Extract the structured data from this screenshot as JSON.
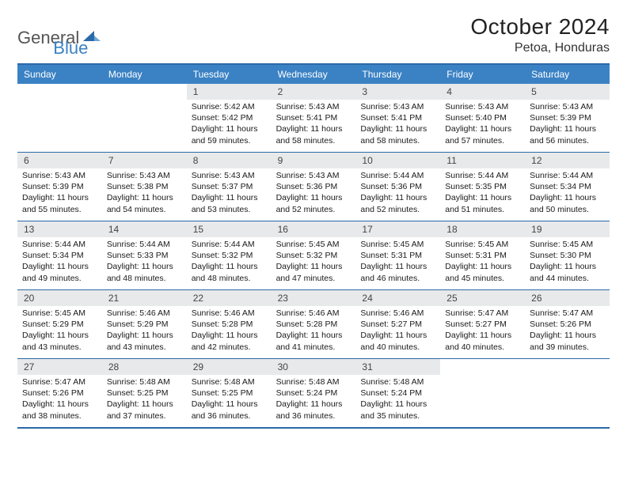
{
  "logo": {
    "word1": "General",
    "word2": "Blue"
  },
  "title": "October 2024",
  "location": "Petoa, Honduras",
  "colors": {
    "header_bg": "#3b82c4",
    "border": "#2b6aa8",
    "daynum_bg": "#e8e9ea",
    "text": "#1a1a1a",
    "logo_gray": "#555555",
    "logo_blue": "#3b82c4"
  },
  "days_of_week": [
    "Sunday",
    "Monday",
    "Tuesday",
    "Wednesday",
    "Thursday",
    "Friday",
    "Saturday"
  ],
  "layout": {
    "grid_columns": 7,
    "grid_rows": 5,
    "fontsize_title": 28,
    "fontsize_location": 16,
    "fontsize_dow": 12,
    "fontsize_daynum": 12,
    "fontsize_body": 10.5
  },
  "weeks": [
    [
      null,
      null,
      {
        "n": "1",
        "sunrise": "Sunrise: 5:42 AM",
        "sunset": "Sunset: 5:42 PM",
        "day1": "Daylight: 11 hours",
        "day2": "and 59 minutes."
      },
      {
        "n": "2",
        "sunrise": "Sunrise: 5:43 AM",
        "sunset": "Sunset: 5:41 PM",
        "day1": "Daylight: 11 hours",
        "day2": "and 58 minutes."
      },
      {
        "n": "3",
        "sunrise": "Sunrise: 5:43 AM",
        "sunset": "Sunset: 5:41 PM",
        "day1": "Daylight: 11 hours",
        "day2": "and 58 minutes."
      },
      {
        "n": "4",
        "sunrise": "Sunrise: 5:43 AM",
        "sunset": "Sunset: 5:40 PM",
        "day1": "Daylight: 11 hours",
        "day2": "and 57 minutes."
      },
      {
        "n": "5",
        "sunrise": "Sunrise: 5:43 AM",
        "sunset": "Sunset: 5:39 PM",
        "day1": "Daylight: 11 hours",
        "day2": "and 56 minutes."
      }
    ],
    [
      {
        "n": "6",
        "sunrise": "Sunrise: 5:43 AM",
        "sunset": "Sunset: 5:39 PM",
        "day1": "Daylight: 11 hours",
        "day2": "and 55 minutes."
      },
      {
        "n": "7",
        "sunrise": "Sunrise: 5:43 AM",
        "sunset": "Sunset: 5:38 PM",
        "day1": "Daylight: 11 hours",
        "day2": "and 54 minutes."
      },
      {
        "n": "8",
        "sunrise": "Sunrise: 5:43 AM",
        "sunset": "Sunset: 5:37 PM",
        "day1": "Daylight: 11 hours",
        "day2": "and 53 minutes."
      },
      {
        "n": "9",
        "sunrise": "Sunrise: 5:43 AM",
        "sunset": "Sunset: 5:36 PM",
        "day1": "Daylight: 11 hours",
        "day2": "and 52 minutes."
      },
      {
        "n": "10",
        "sunrise": "Sunrise: 5:44 AM",
        "sunset": "Sunset: 5:36 PM",
        "day1": "Daylight: 11 hours",
        "day2": "and 52 minutes."
      },
      {
        "n": "11",
        "sunrise": "Sunrise: 5:44 AM",
        "sunset": "Sunset: 5:35 PM",
        "day1": "Daylight: 11 hours",
        "day2": "and 51 minutes."
      },
      {
        "n": "12",
        "sunrise": "Sunrise: 5:44 AM",
        "sunset": "Sunset: 5:34 PM",
        "day1": "Daylight: 11 hours",
        "day2": "and 50 minutes."
      }
    ],
    [
      {
        "n": "13",
        "sunrise": "Sunrise: 5:44 AM",
        "sunset": "Sunset: 5:34 PM",
        "day1": "Daylight: 11 hours",
        "day2": "and 49 minutes."
      },
      {
        "n": "14",
        "sunrise": "Sunrise: 5:44 AM",
        "sunset": "Sunset: 5:33 PM",
        "day1": "Daylight: 11 hours",
        "day2": "and 48 minutes."
      },
      {
        "n": "15",
        "sunrise": "Sunrise: 5:44 AM",
        "sunset": "Sunset: 5:32 PM",
        "day1": "Daylight: 11 hours",
        "day2": "and 48 minutes."
      },
      {
        "n": "16",
        "sunrise": "Sunrise: 5:45 AM",
        "sunset": "Sunset: 5:32 PM",
        "day1": "Daylight: 11 hours",
        "day2": "and 47 minutes."
      },
      {
        "n": "17",
        "sunrise": "Sunrise: 5:45 AM",
        "sunset": "Sunset: 5:31 PM",
        "day1": "Daylight: 11 hours",
        "day2": "and 46 minutes."
      },
      {
        "n": "18",
        "sunrise": "Sunrise: 5:45 AM",
        "sunset": "Sunset: 5:31 PM",
        "day1": "Daylight: 11 hours",
        "day2": "and 45 minutes."
      },
      {
        "n": "19",
        "sunrise": "Sunrise: 5:45 AM",
        "sunset": "Sunset: 5:30 PM",
        "day1": "Daylight: 11 hours",
        "day2": "and 44 minutes."
      }
    ],
    [
      {
        "n": "20",
        "sunrise": "Sunrise: 5:45 AM",
        "sunset": "Sunset: 5:29 PM",
        "day1": "Daylight: 11 hours",
        "day2": "and 43 minutes."
      },
      {
        "n": "21",
        "sunrise": "Sunrise: 5:46 AM",
        "sunset": "Sunset: 5:29 PM",
        "day1": "Daylight: 11 hours",
        "day2": "and 43 minutes."
      },
      {
        "n": "22",
        "sunrise": "Sunrise: 5:46 AM",
        "sunset": "Sunset: 5:28 PM",
        "day1": "Daylight: 11 hours",
        "day2": "and 42 minutes."
      },
      {
        "n": "23",
        "sunrise": "Sunrise: 5:46 AM",
        "sunset": "Sunset: 5:28 PM",
        "day1": "Daylight: 11 hours",
        "day2": "and 41 minutes."
      },
      {
        "n": "24",
        "sunrise": "Sunrise: 5:46 AM",
        "sunset": "Sunset: 5:27 PM",
        "day1": "Daylight: 11 hours",
        "day2": "and 40 minutes."
      },
      {
        "n": "25",
        "sunrise": "Sunrise: 5:47 AM",
        "sunset": "Sunset: 5:27 PM",
        "day1": "Daylight: 11 hours",
        "day2": "and 40 minutes."
      },
      {
        "n": "26",
        "sunrise": "Sunrise: 5:47 AM",
        "sunset": "Sunset: 5:26 PM",
        "day1": "Daylight: 11 hours",
        "day2": "and 39 minutes."
      }
    ],
    [
      {
        "n": "27",
        "sunrise": "Sunrise: 5:47 AM",
        "sunset": "Sunset: 5:26 PM",
        "day1": "Daylight: 11 hours",
        "day2": "and 38 minutes."
      },
      {
        "n": "28",
        "sunrise": "Sunrise: 5:48 AM",
        "sunset": "Sunset: 5:25 PM",
        "day1": "Daylight: 11 hours",
        "day2": "and 37 minutes."
      },
      {
        "n": "29",
        "sunrise": "Sunrise: 5:48 AM",
        "sunset": "Sunset: 5:25 PM",
        "day1": "Daylight: 11 hours",
        "day2": "and 36 minutes."
      },
      {
        "n": "30",
        "sunrise": "Sunrise: 5:48 AM",
        "sunset": "Sunset: 5:24 PM",
        "day1": "Daylight: 11 hours",
        "day2": "and 36 minutes."
      },
      {
        "n": "31",
        "sunrise": "Sunrise: 5:48 AM",
        "sunset": "Sunset: 5:24 PM",
        "day1": "Daylight: 11 hours",
        "day2": "and 35 minutes."
      },
      null,
      null
    ]
  ]
}
